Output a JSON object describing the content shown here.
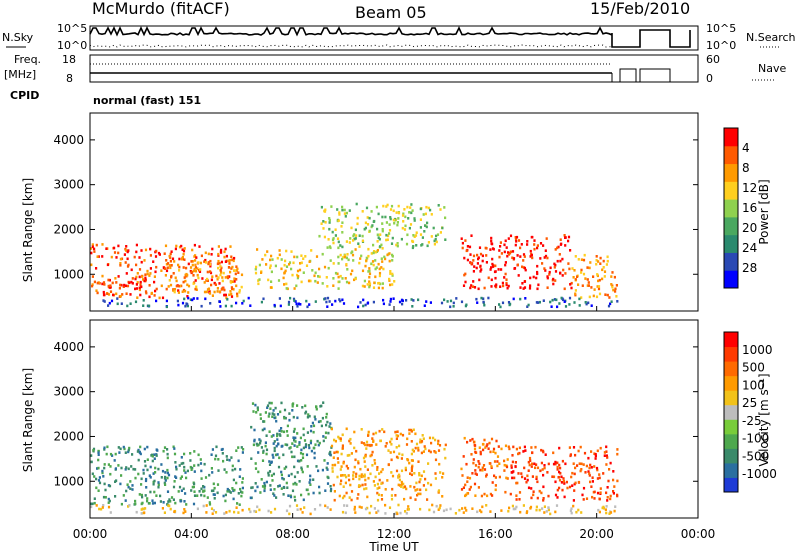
{
  "header": {
    "station": "McMurdo (fitACF)",
    "beam": "Beam 05",
    "date": "15/Feb/2010",
    "nsky_label": "N.Sky",
    "nsearch_label": "N.Search",
    "noise_ticks": [
      "10^5",
      "10^0"
    ],
    "freq_label_1": "Freq.",
    "freq_label_2": "[MHz]",
    "freq_ticks": [
      "18",
      "8"
    ],
    "nave_label": "Nave",
    "nave_ticks": [
      "60",
      "0"
    ],
    "cpid_label": "CPID",
    "cpid_value": "normal (fast) 151"
  },
  "colors": {
    "power_scale": [
      "#0000ff",
      "#2a49b4",
      "#2a8a6e",
      "#4aa860",
      "#8fd14f",
      "#ffcf1f",
      "#ff9a00",
      "#ff5a00",
      "#ff0000"
    ],
    "velocity_scale": [
      "#1e3bd6",
      "#2a6fa0",
      "#3a8a6a",
      "#4ea84e",
      "#78cc3a",
      "#bdbdbd",
      "#f2c21a",
      "#ff9a00",
      "#ff6a00",
      "#ff3a00",
      "#ff0000"
    ]
  },
  "chart_data": [
    {
      "type": "heatmap",
      "name": "power",
      "ylabel": "Slant Range [km]",
      "yticks": [
        "1000",
        "2000",
        "3000",
        "4000"
      ],
      "ylim": [
        180,
        4600
      ],
      "xlim": [
        0,
        24
      ],
      "colorbar_label": "Power [dB]",
      "colorbar_ticks": [
        "4",
        "8",
        "12",
        "16",
        "20",
        "24",
        "28"
      ],
      "regions": [
        {
          "t0": 0.0,
          "t1": 5.8,
          "r0": 500,
          "r1": 1700,
          "level": 7
        },
        {
          "t0": 0.5,
          "t1": 2.2,
          "r0": 550,
          "r1": 1000,
          "level": 8
        },
        {
          "t0": 3.0,
          "t1": 6.0,
          "r0": 600,
          "r1": 1300,
          "level": 6
        },
        {
          "t0": 6.5,
          "t1": 12.0,
          "r0": 700,
          "r1": 1600,
          "level": 5
        },
        {
          "t0": 9.0,
          "t1": 14.0,
          "r0": 1600,
          "r1": 2600,
          "level": 4
        },
        {
          "t0": 14.6,
          "t1": 19.0,
          "r0": 700,
          "r1": 1900,
          "level": 8
        },
        {
          "t0": 19.0,
          "t1": 20.8,
          "r0": 500,
          "r1": 1500,
          "level": 6
        },
        {
          "t0": 0.0,
          "t1": 20.8,
          "r0": 300,
          "r1": 500,
          "level": 1
        }
      ]
    },
    {
      "type": "heatmap",
      "name": "velocity",
      "ylabel": "Slant Range [km]",
      "yticks": [
        "1000",
        "2000",
        "3000",
        "4000"
      ],
      "ylim": [
        180,
        4600
      ],
      "xlim": [
        0,
        24
      ],
      "xticks": [
        "00:00",
        "04:00",
        "08:00",
        "12:00",
        "16:00",
        "20:00",
        "00:00"
      ],
      "xlabel": "Time UT",
      "colorbar_label": "Velocity [m s⁻¹]",
      "colorbar_ticks": [
        "1000",
        "500",
        "100",
        "25",
        "-25",
        "-100",
        "-500",
        "-1000"
      ],
      "regions": [
        {
          "t0": 0.0,
          "t1": 6.0,
          "r0": 500,
          "r1": 1800,
          "level": 2
        },
        {
          "t0": 6.3,
          "t1": 9.5,
          "r0": 600,
          "r1": 2800,
          "level": 2
        },
        {
          "t0": 9.5,
          "t1": 14.0,
          "r0": 600,
          "r1": 2200,
          "level": 7
        },
        {
          "t0": 14.6,
          "t1": 16.5,
          "r0": 700,
          "r1": 2000,
          "level": 8
        },
        {
          "t0": 16.5,
          "t1": 20.8,
          "r0": 600,
          "r1": 1800,
          "level": 9
        },
        {
          "t0": 0.0,
          "t1": 20.8,
          "r0": 300,
          "r1": 500,
          "level": 6
        }
      ]
    }
  ]
}
